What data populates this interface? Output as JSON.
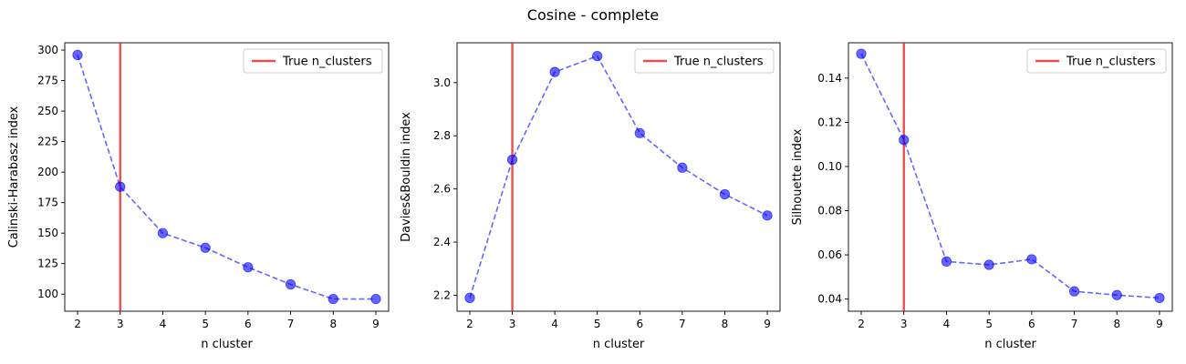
{
  "figure": {
    "title": "Cosine - complete"
  },
  "colors": {
    "series": "#0000ff",
    "reference": "#e8302a"
  },
  "chart_data": [
    {
      "type": "line",
      "xlabel": "n cluster",
      "ylabel": "Calinski-Harabasz index",
      "x": [
        2,
        3,
        4,
        5,
        6,
        7,
        8,
        9
      ],
      "series": [
        {
          "values": [
            296,
            188,
            150,
            138,
            122,
            108,
            96,
            96
          ]
        }
      ],
      "reference_line": {
        "x": 3,
        "label": "True n_clusters"
      },
      "xticks": [
        "2",
        "3",
        "4",
        "5",
        "6",
        "7",
        "8",
        "9"
      ],
      "xlim": [
        1.7,
        9.3
      ],
      "yticks": [
        "100",
        "125",
        "150",
        "175",
        "200",
        "225",
        "250",
        "275",
        "300"
      ],
      "ylim": [
        86,
        306
      ],
      "legend": "top-right",
      "grid": false
    },
    {
      "type": "line",
      "xlabel": "n cluster",
      "ylabel": "Davies&Bouldin index",
      "x": [
        2,
        3,
        4,
        5,
        6,
        7,
        8,
        9
      ],
      "series": [
        {
          "values": [
            2.19,
            2.71,
            3.04,
            3.1,
            2.81,
            2.68,
            2.58,
            2.5
          ]
        }
      ],
      "reference_line": {
        "x": 3,
        "label": "True n_clusters"
      },
      "xticks": [
        "2",
        "3",
        "4",
        "5",
        "6",
        "7",
        "8",
        "9"
      ],
      "xlim": [
        1.7,
        9.3
      ],
      "yticks": [
        "2.2",
        "2.4",
        "2.6",
        "2.8",
        "3.0"
      ],
      "ylim": [
        2.14,
        3.15
      ],
      "legend": "top-right",
      "grid": false
    },
    {
      "type": "line",
      "xlabel": "n cluster",
      "ylabel": "Silhouette index",
      "x": [
        2,
        3,
        4,
        5,
        6,
        7,
        8,
        9
      ],
      "series": [
        {
          "values": [
            0.151,
            0.112,
            0.057,
            0.0555,
            0.058,
            0.0435,
            0.0418,
            0.0405
          ]
        }
      ],
      "reference_line": {
        "x": 3,
        "label": "True n_clusters"
      },
      "xticks": [
        "2",
        "3",
        "4",
        "5",
        "6",
        "7",
        "8",
        "9"
      ],
      "xlim": [
        1.7,
        9.3
      ],
      "yticks": [
        "0.04",
        "0.06",
        "0.08",
        "0.10",
        "0.12",
        "0.14"
      ],
      "ylim": [
        0.0345,
        0.156
      ],
      "legend": "top-right",
      "grid": false
    }
  ]
}
